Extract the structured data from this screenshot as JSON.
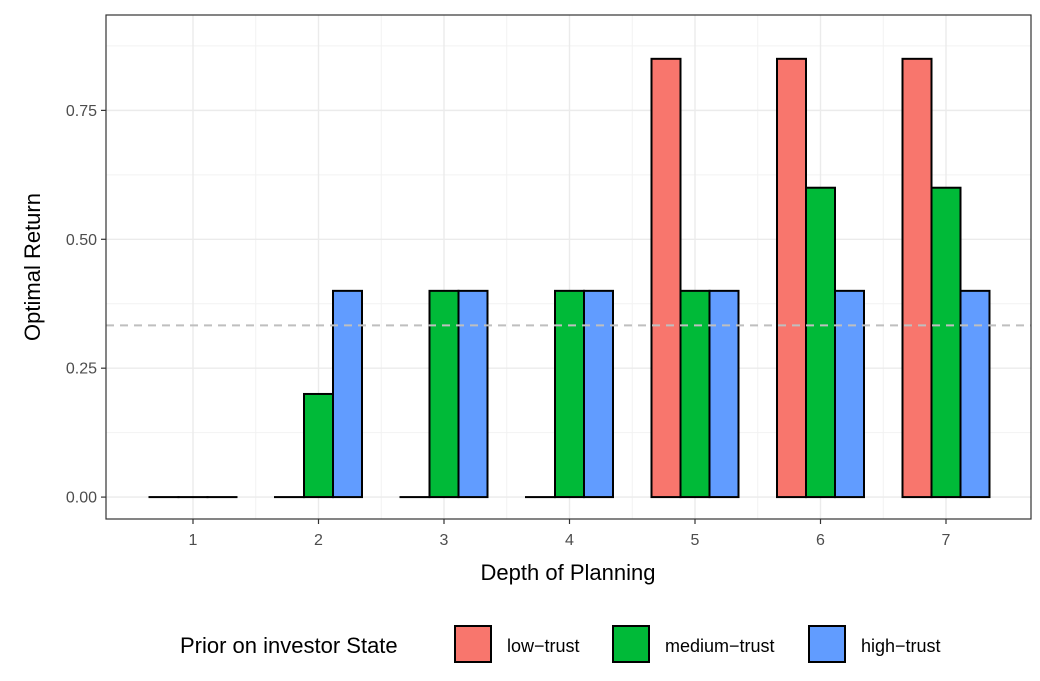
{
  "chart_data": {
    "type": "bar",
    "xlabel": "Depth of Planning",
    "ylabel": "Optimal Return",
    "categories": [
      "1",
      "2",
      "3",
      "4",
      "5",
      "6",
      "7"
    ],
    "series": [
      {
        "name": "low−trust",
        "color": "#F8766D",
        "values": [
          0,
          0,
          0,
          0,
          0.85,
          0.85,
          0.85
        ]
      },
      {
        "name": "medium−trust",
        "color": "#00BA38",
        "values": [
          0,
          0.2,
          0.4,
          0.4,
          0.4,
          0.6,
          0.6
        ]
      },
      {
        "name": "high−trust",
        "color": "#619CFF",
        "values": [
          0,
          0.4,
          0.4,
          0.4,
          0.4,
          0.4,
          0.4
        ]
      }
    ],
    "yticks": [
      0,
      0.25,
      0.5,
      0.75
    ],
    "ytick_labels": [
      "0.00",
      "0.25",
      "0.50",
      "0.75"
    ],
    "ylim": [
      -0.0425,
      0.935
    ],
    "reference_line": {
      "y": 0.333,
      "style": "dashed",
      "color": "#bfbfbf"
    },
    "grid": true,
    "legend": {
      "title": "Prior on investor State",
      "position": "bottom"
    }
  }
}
